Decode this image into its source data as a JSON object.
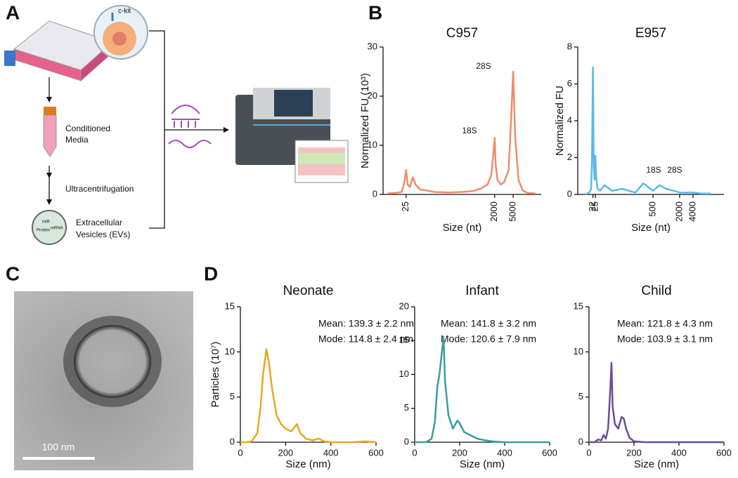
{
  "panel_labels": [
    "A",
    "B",
    "C",
    "D"
  ],
  "diagram": {
    "marker": "c-kit",
    "media": [
      "Conditioned",
      "Media"
    ],
    "step": "Ultracentrifugation",
    "vesicles": [
      "Extracellular",
      "Vesicles (EVs)"
    ],
    "cargo": [
      "miR",
      "Protein",
      "mRNA"
    ]
  },
  "micrograph": {
    "scale_bar": "100 nm"
  },
  "chart_data": [
    {
      "type": "line",
      "title": "C957",
      "x_label": "Size (nt)",
      "y_label": "Normalized FU (10³)",
      "log_x": true,
      "x": [
        10,
        15,
        20,
        23,
        25,
        27,
        30,
        35,
        40,
        50,
        70,
        100,
        200,
        400,
        700,
        1000,
        1400,
        1700,
        1900,
        2000,
        2100,
        2300,
        2700,
        3200,
        4000,
        4500,
        5000,
        5500,
        6500,
        8000,
        10000,
        15000
      ],
      "series": [
        {
          "color": "#ec8c6c",
          "values": [
            0.2,
            0.3,
            0.5,
            2.5,
            5,
            2,
            1.5,
            3.5,
            2,
            1,
            0.8,
            0.5,
            0.4,
            0.5,
            0.7,
            1.2,
            2,
            4,
            9,
            11.5,
            6,
            3,
            2,
            2.5,
            5,
            15,
            25,
            12,
            3,
            0.8,
            0.3,
            0.2
          ]
        }
      ],
      "xlim": [
        8,
        20000
      ],
      "ylim": [
        0,
        30
      ],
      "xticks": [
        25,
        2000,
        5000
      ],
      "yticks": [
        0,
        10,
        20,
        30
      ],
      "annotations": [
        "18S",
        "28S"
      ]
    },
    {
      "type": "line",
      "title": "E957",
      "x_label": "Size (nt)",
      "y_label": "Normalized FU",
      "log_x": true,
      "x": [
        15,
        18,
        20,
        21,
        22,
        23,
        24,
        25,
        26,
        28,
        32,
        40,
        60,
        100,
        200,
        300,
        500,
        700,
        1000,
        1500,
        2000,
        3000,
        4000,
        6000,
        10000
      ],
      "series": [
        {
          "color": "#5cb9e8",
          "values": [
            0,
            0.1,
            0.3,
            2,
            6.9,
            1.5,
            0.8,
            2.1,
            1,
            0.3,
            0.2,
            0.5,
            0.2,
            0.3,
            0.1,
            0.6,
            0.2,
            0.5,
            0.3,
            0.2,
            0.1,
            0.1,
            0.1,
            0.05,
            0.05
          ]
        }
      ],
      "xlim": [
        10,
        20000
      ],
      "ylim": [
        0,
        8
      ],
      "xticks": [
        22,
        25,
        500,
        2000,
        4000
      ],
      "yticks": [
        0,
        2,
        4,
        6,
        8
      ],
      "annotations": [
        "18S",
        "28S"
      ]
    },
    {
      "type": "line",
      "title": "Neonate",
      "x_label": "Size (nm)",
      "y_label": "Particles (10⁷)",
      "x": [
        0,
        25,
        50,
        75,
        90,
        100,
        115,
        125,
        140,
        160,
        180,
        200,
        225,
        250,
        265,
        290,
        320,
        345,
        370,
        400,
        450,
        500,
        550,
        600
      ],
      "series": [
        {
          "color": "#e8a820",
          "values": [
            0,
            0,
            0.1,
            1,
            4,
            7.5,
            10.3,
            9,
            6,
            3,
            2,
            1.5,
            1.2,
            2,
            1,
            0.4,
            0.2,
            0.4,
            0.1,
            0,
            0,
            0,
            0.1,
            0
          ]
        }
      ],
      "xlim": [
        0,
        600
      ],
      "ylim": [
        0,
        15
      ],
      "xticks": [
        0,
        200,
        400,
        600
      ],
      "yticks": [
        0,
        5,
        10,
        15
      ],
      "annotations": [
        "Mean: 139.3 ± 2.2 nm",
        "Mode: 114.8 ± 2.4 nm"
      ]
    },
    {
      "type": "line",
      "title": "Infant",
      "x_label": "Size (nm)",
      "x": [
        0,
        25,
        50,
        75,
        90,
        100,
        110,
        120,
        128,
        135,
        150,
        170,
        190,
        200,
        220,
        250,
        280,
        310,
        350,
        400,
        450,
        500,
        550,
        600
      ],
      "series": [
        {
          "color": "#3a9e9a",
          "values": [
            0,
            0,
            0,
            0.5,
            3,
            8,
            10,
            13,
            15.5,
            9,
            4,
            2,
            3.2,
            2.8,
            1.5,
            1,
            0.5,
            0.3,
            0.1,
            0,
            0,
            0,
            0,
            0
          ]
        }
      ],
      "xlim": [
        0,
        600
      ],
      "ylim": [
        0,
        20
      ],
      "xticks": [
        0,
        200,
        400,
        600
      ],
      "yticks": [
        0,
        5,
        10,
        15,
        20
      ],
      "annotations": [
        "Mean: 141.8 ± 3.2 nm",
        "Mode: 120.6 ± 7.9 nm"
      ]
    },
    {
      "type": "line",
      "title": "Child",
      "x_label": "Size (nm)",
      "x": [
        0,
        25,
        40,
        55,
        65,
        75,
        85,
        95,
        100,
        105,
        115,
        130,
        145,
        155,
        165,
        180,
        200,
        250,
        300,
        400,
        500,
        600
      ],
      "series": [
        {
          "color": "#6b4c9a",
          "values": [
            0,
            0,
            0.3,
            0.2,
            0.8,
            0.4,
            1.5,
            6,
            8.8,
            4,
            2,
            1.5,
            2.8,
            2.6,
            1.5,
            0.5,
            0.1,
            0,
            0,
            0,
            0,
            0
          ]
        }
      ],
      "xlim": [
        0,
        600
      ],
      "ylim": [
        0,
        15
      ],
      "xticks": [
        0,
        200,
        400,
        600
      ],
      "yticks": [
        0,
        5,
        10,
        15
      ],
      "annotations": [
        "Mean: 121.8 ± 4.3 nm",
        "Mode: 103.9 ± 3.1 nm"
      ]
    }
  ]
}
